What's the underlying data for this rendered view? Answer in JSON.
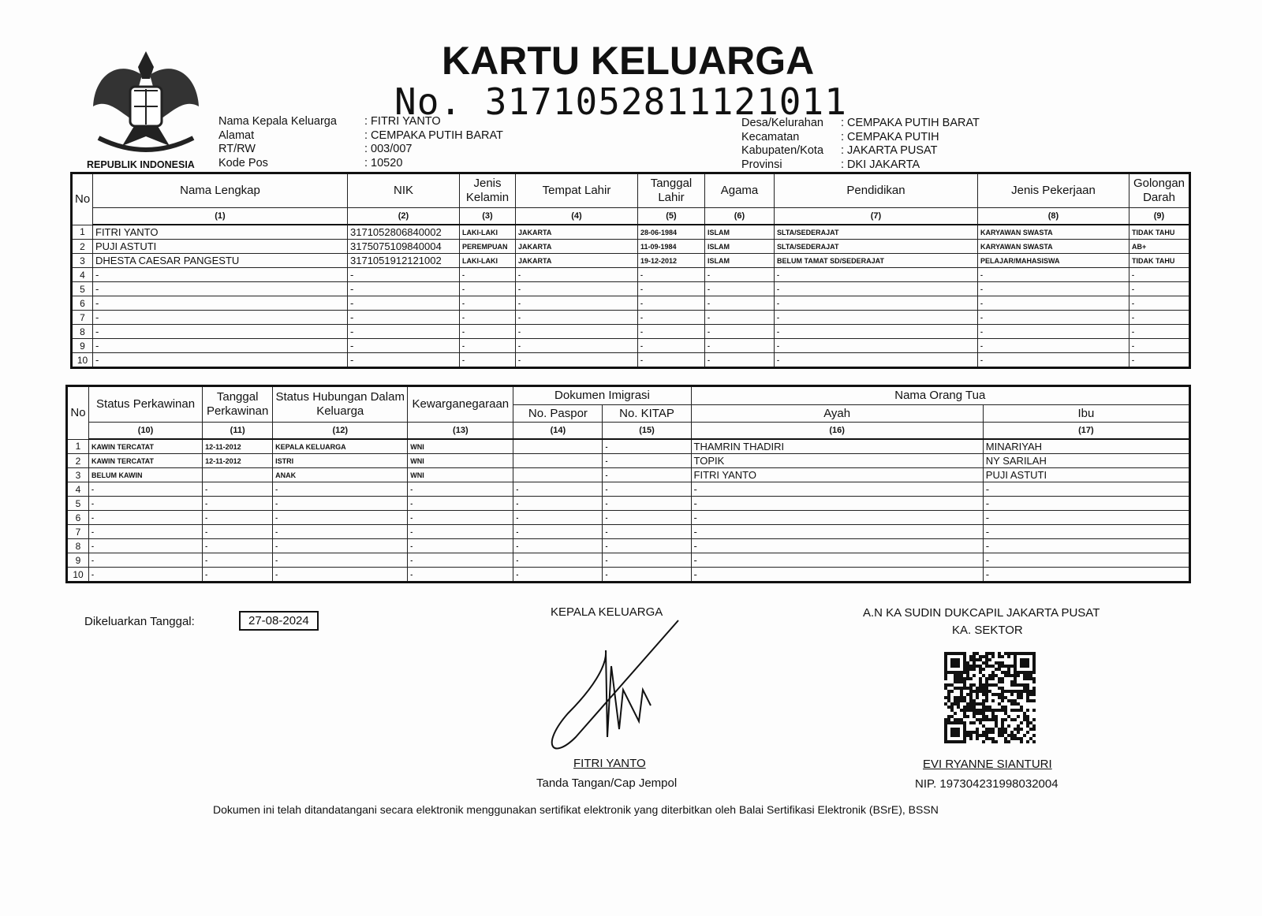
{
  "header": {
    "emblem_label": "REPUBLIK INDONESIA",
    "title": "KARTU KELUARGA",
    "number": "No. 3171052811121011"
  },
  "info_left": [
    {
      "label": "Nama Kepala Keluarga",
      "value": ": FITRI YANTO"
    },
    {
      "label": "Alamat",
      "value": ": CEMPAKA PUTIH BARAT"
    },
    {
      "label": "RT/RW",
      "value": ": 003/007"
    },
    {
      "label": "Kode Pos",
      "value": ": 10520"
    }
  ],
  "info_right": [
    {
      "label": "Desa/Kelurahan",
      "value": ": CEMPAKA PUTIH BARAT"
    },
    {
      "label": "Kecamatan",
      "value": ": CEMPAKA PUTIH"
    },
    {
      "label": "Kabupaten/Kota",
      "value": ": JAKARTA PUSAT"
    },
    {
      "label": "Provinsi",
      "value": ": DKI JAKARTA"
    }
  ],
  "table1": {
    "headers": [
      "No",
      "Nama Lengkap",
      "NIK",
      "Jenis Kelamin",
      "Tempat Lahir",
      "Tanggal Lahir",
      "Agama",
      "Pendidikan",
      "Jenis Pekerjaan",
      "Golongan Darah"
    ],
    "col_numbers": [
      "(1)",
      "(2)",
      "(3)",
      "(4)",
      "(5)",
      "(6)",
      "(7)",
      "(8)",
      "(9)"
    ],
    "rows": [
      [
        "1",
        "FITRI YANTO",
        "3171052806840002",
        "LAKI-LAKI",
        "JAKARTA",
        "28-06-1984",
        "ISLAM",
        "SLTA/SEDERAJAT",
        "KARYAWAN SWASTA",
        "TIDAK TAHU"
      ],
      [
        "2",
        "PUJI ASTUTI",
        "3175075109840004",
        "PEREMPUAN",
        "JAKARTA",
        "11-09-1984",
        "ISLAM",
        "SLTA/SEDERAJAT",
        "KARYAWAN SWASTA",
        "AB+"
      ],
      [
        "3",
        "DHESTA CAESAR PANGESTU",
        "3171051912121002",
        "LAKI-LAKI",
        "JAKARTA",
        "19-12-2012",
        "ISLAM",
        "BELUM TAMAT SD/SEDERAJAT",
        "PELAJAR/MAHASISWA",
        "TIDAK TAHU"
      ],
      [
        "4",
        "-",
        "-",
        "-",
        "-",
        "-",
        "-",
        "-",
        "-",
        "-"
      ],
      [
        "5",
        "-",
        "-",
        "-",
        "-",
        "-",
        "-",
        "-",
        "-",
        "-"
      ],
      [
        "6",
        "-",
        "-",
        "-",
        "-",
        "-",
        "-",
        "-",
        "-",
        "-"
      ],
      [
        "7",
        "-",
        "-",
        "-",
        "-",
        "-",
        "-",
        "-",
        "-",
        "-"
      ],
      [
        "8",
        "-",
        "-",
        "-",
        "-",
        "-",
        "-",
        "-",
        "-",
        "-"
      ],
      [
        "9",
        "-",
        "-",
        "-",
        "-",
        "-",
        "-",
        "-",
        "-",
        "-"
      ],
      [
        "10",
        "-",
        "-",
        "-",
        "-",
        "-",
        "-",
        "-",
        "-",
        "-"
      ]
    ]
  },
  "table2": {
    "headers": [
      "No",
      "Status Perkawinan",
      "Tanggal Perkawinan",
      "Status Hubungan Dalam Keluarga",
      "Kewarganegaraan"
    ],
    "groups": [
      {
        "label": "Dokumen Imigrasi",
        "sub": [
          "No. Paspor",
          "No. KITAP"
        ]
      },
      {
        "label": "Nama Orang Tua",
        "sub": [
          "Ayah",
          "Ibu"
        ]
      }
    ],
    "col_numbers": [
      "(10)",
      "(11)",
      "(12)",
      "(13)",
      "(14)",
      "(15)",
      "(16)",
      "(17)"
    ],
    "rows": [
      [
        "1",
        "KAWIN TERCATAT",
        "12-11-2012",
        "KEPALA KELUARGA",
        "WNI",
        null,
        "-",
        "THAMRIN THADIRI",
        "MINARIYAH"
      ],
      [
        "2",
        "KAWIN TERCATAT",
        "12-11-2012",
        "ISTRI",
        "WNI",
        null,
        "-",
        "TOPIK",
        "NY SARILAH"
      ],
      [
        "3",
        "BELUM KAWIN",
        null,
        "ANAK",
        "WNI",
        null,
        "-",
        "FITRI YANTO",
        "PUJI ASTUTI"
      ],
      [
        "4",
        "-",
        "-",
        "-",
        "-",
        "-",
        "-",
        "-",
        "-"
      ],
      [
        "5",
        "-",
        "-",
        "-",
        "-",
        "-",
        "-",
        "-",
        "-"
      ],
      [
        "6",
        "-",
        "-",
        "-",
        "-",
        "-",
        "-",
        "-",
        "-"
      ],
      [
        "7",
        "-",
        "-",
        "-",
        "-",
        "-",
        "-",
        "-",
        "-"
      ],
      [
        "8",
        "-",
        "-",
        "-",
        "-",
        "-",
        "-",
        "-",
        "-"
      ],
      [
        "9",
        "-",
        "-",
        "-",
        "-",
        "-",
        "-",
        "-",
        "-"
      ],
      [
        "10",
        "-",
        "-",
        "-",
        "-",
        "-",
        "-",
        "-",
        "-"
      ]
    ]
  },
  "footer": {
    "issued_label": "Dikeluarkan Tanggal:",
    "issued_date": "27-08-2024",
    "head_title": "KEPALA KELUARGA",
    "head_name": "FITRI YANTO",
    "head_caption": "Tanda Tangan/Cap Jempol",
    "official_title": "A.N KA SUDIN DUKCAPIL JAKARTA PUSAT",
    "official_subtitle": "KA. SEKTOR",
    "official_name": "EVI RYANNE SIANTURI",
    "official_nip": "NIP. 197304231998032004",
    "disclaimer": "Dokumen ini telah ditandatangani secara elektronik menggunakan sertifikat elektronik yang diterbitkan oleh Balai Sertifikasi Elektronik (BSrE), BSSN"
  }
}
